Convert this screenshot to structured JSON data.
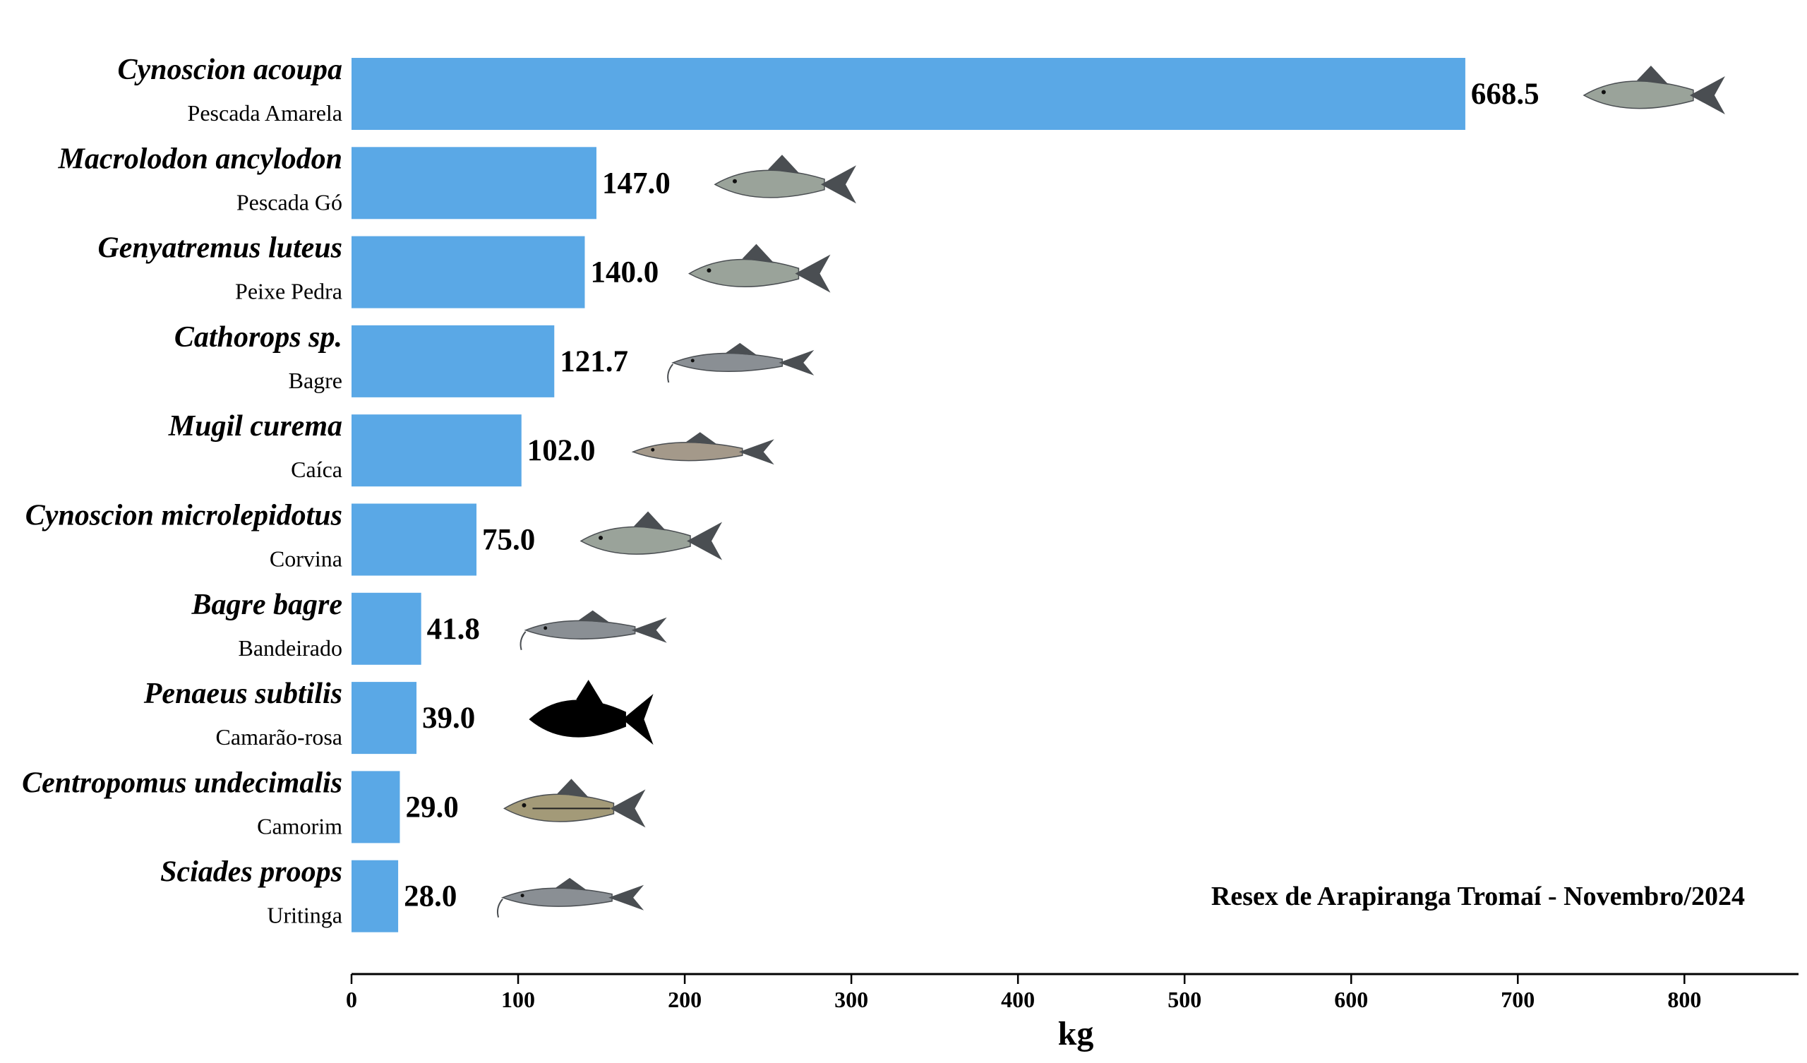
{
  "chart_data": {
    "type": "bar",
    "orientation": "horizontal",
    "categories": [
      "Cynoscion acoupa",
      "Macrolodon ancylodon",
      "Genyatremus luteus",
      "Cathorops sp.",
      "Mugil curema",
      "Cynoscion microlepidotus",
      "Bagre bagre",
      "Penaeus subtilis",
      "Centropomus undecimalis",
      "Sciades proops"
    ],
    "common_names": [
      "Pescada Amarela",
      "Pescada Gó",
      "Peixe Pedra",
      "Bagre",
      "Caíca",
      "Corvina",
      "Bandeirado",
      "Camarão-rosa",
      "Camorim",
      "Uritinga"
    ],
    "values": [
      668.5,
      147.0,
      140.0,
      121.7,
      102.0,
      75.0,
      41.8,
      39.0,
      29.0,
      28.0
    ],
    "value_labels": [
      "668.5",
      "147.0",
      "140.0",
      "121.7",
      "102.0",
      "75.0",
      "41.8",
      "39.0",
      "29.0",
      "28.0"
    ],
    "icons": [
      "fish-icon",
      "fish-icon",
      "fish-icon",
      "catfish-icon",
      "mullet-icon",
      "fish-icon",
      "catfish-icon",
      "fish-silhouette-icon",
      "snook-icon",
      "catfish-icon"
    ],
    "xlabel": "kg",
    "ylabel": "",
    "xlim": [
      0,
      870
    ],
    "xticks": [
      0,
      100,
      200,
      300,
      400,
      500,
      600,
      700,
      800
    ],
    "xtick_labels": [
      "0",
      "100",
      "200",
      "300",
      "400",
      "500",
      "600",
      "700",
      "800"
    ],
    "annotation": "Resex de Arapiranga Tromaí - Novembro/2024",
    "grid": false,
    "bar_color": "#5aa8e6"
  }
}
